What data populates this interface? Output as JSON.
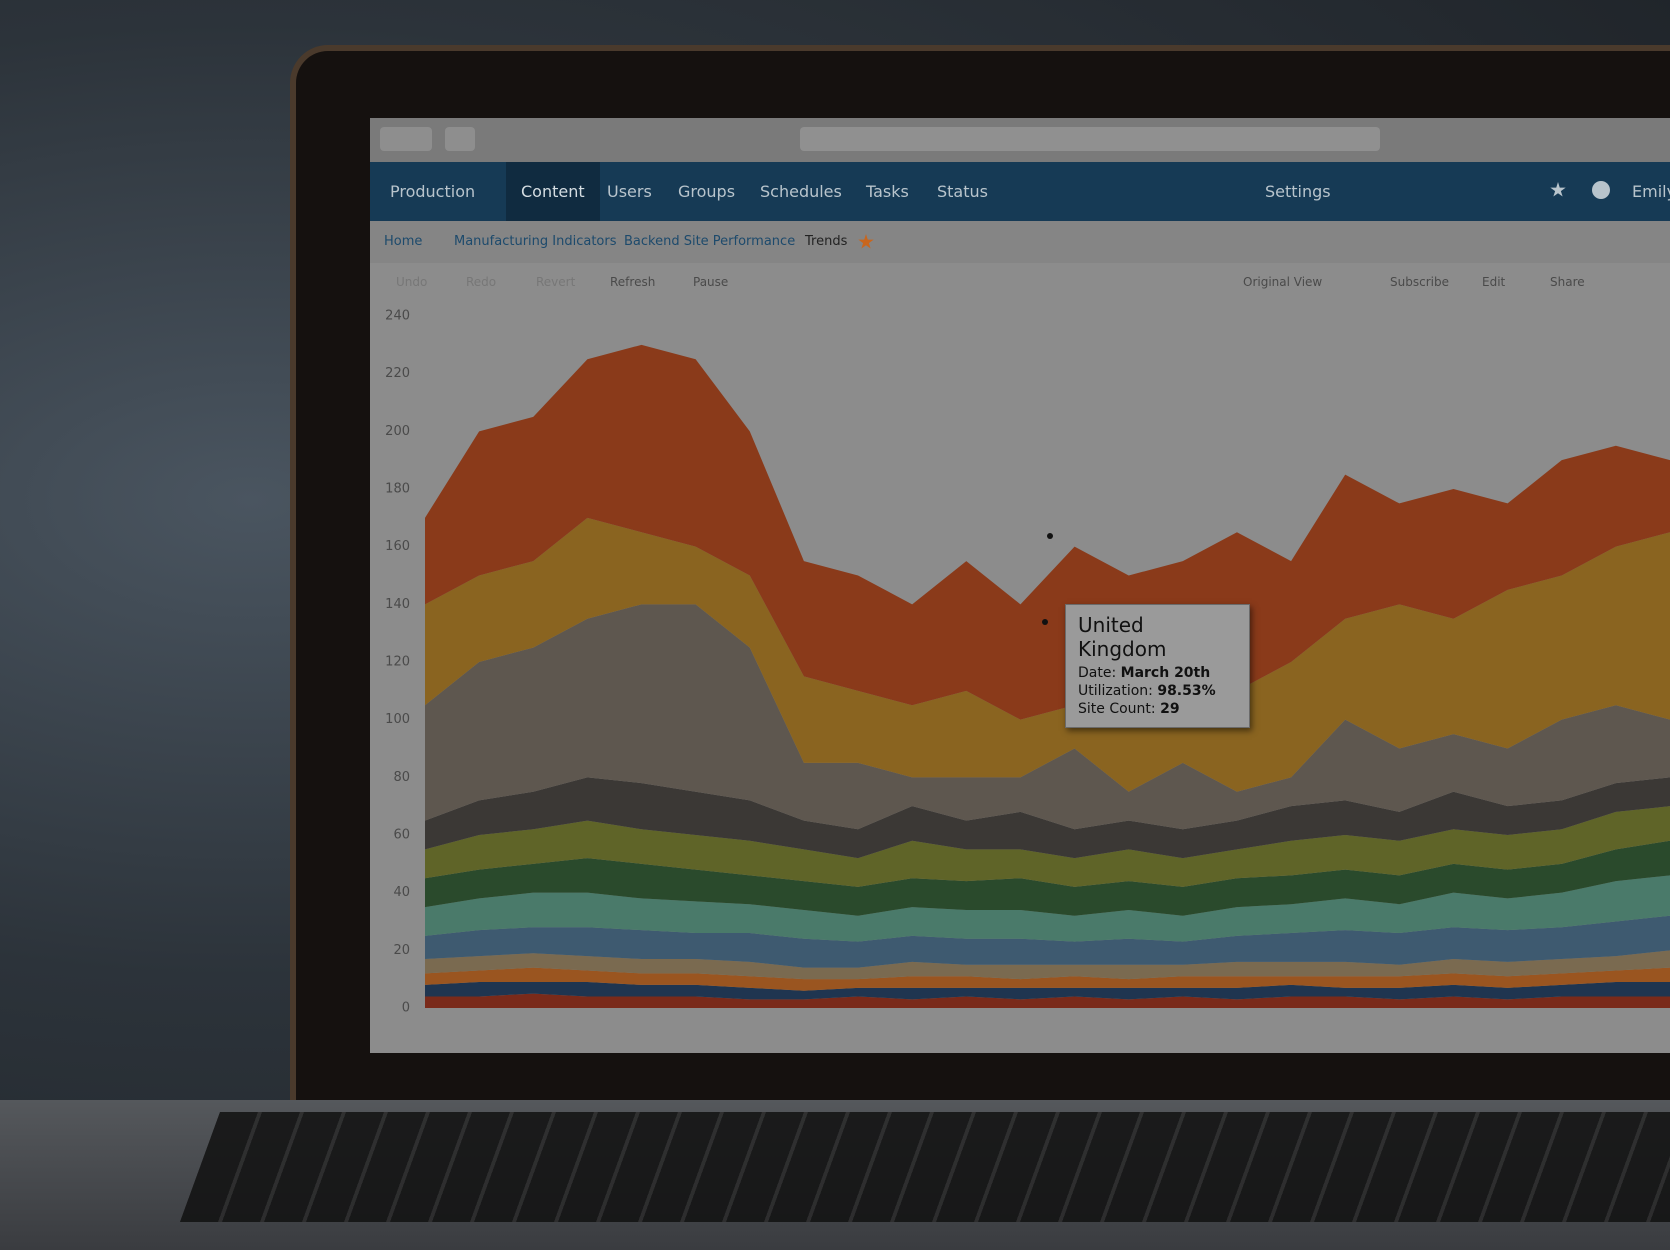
{
  "nav": {
    "site": "Production",
    "items": [
      "Content",
      "Users",
      "Groups",
      "Schedules",
      "Tasks",
      "Status"
    ],
    "settings": "Settings",
    "user": "Emily"
  },
  "breadcrumbs": [
    "Home",
    "Manufacturing Indicators",
    "Backend Site Performance",
    "Trends"
  ],
  "toolbar": {
    "left": [
      "Undo",
      "Redo",
      "Revert",
      "Refresh",
      "Pause"
    ],
    "right": [
      "Original View",
      "Subscribe",
      "Edit",
      "Share"
    ]
  },
  "chart_data": {
    "type": "area",
    "stacked": true,
    "ylim": [
      0,
      240
    ],
    "yticks": [
      0,
      20,
      40,
      60,
      80,
      100,
      120,
      140,
      160,
      180,
      200,
      220,
      240
    ],
    "series": [
      {
        "color": "#7a2a1a",
        "values": [
          4,
          4,
          5,
          4,
          4,
          4,
          3,
          3,
          4,
          3,
          4,
          3,
          4,
          3,
          4,
          3,
          4,
          4,
          3,
          4,
          3,
          4,
          4,
          4
        ]
      },
      {
        "color": "#1f3550",
        "values": [
          4,
          5,
          4,
          5,
          4,
          4,
          4,
          3,
          3,
          4,
          3,
          4,
          3,
          4,
          3,
          4,
          4,
          3,
          4,
          4,
          4,
          4,
          5,
          5
        ]
      },
      {
        "color": "#9a5520",
        "values": [
          4,
          4,
          5,
          4,
          4,
          4,
          4,
          4,
          3,
          4,
          4,
          3,
          4,
          3,
          4,
          4,
          3,
          4,
          4,
          4,
          4,
          4,
          4,
          5
        ]
      },
      {
        "color": "#7a6a50",
        "values": [
          5,
          5,
          5,
          5,
          5,
          5,
          5,
          4,
          4,
          5,
          4,
          5,
          4,
          5,
          4,
          5,
          5,
          5,
          4,
          5,
          5,
          5,
          5,
          6
        ]
      },
      {
        "color": "#3e5a70",
        "values": [
          8,
          9,
          9,
          10,
          10,
          9,
          10,
          10,
          9,
          9,
          9,
          9,
          8,
          9,
          8,
          9,
          10,
          11,
          11,
          11,
          11,
          11,
          12,
          12
        ]
      },
      {
        "color": "#4a7a6a",
        "values": [
          10,
          11,
          12,
          12,
          11,
          11,
          10,
          10,
          9,
          10,
          10,
          10,
          9,
          10,
          9,
          10,
          10,
          11,
          10,
          12,
          11,
          12,
          14,
          14
        ]
      },
      {
        "color": "#2a4a2c",
        "values": [
          10,
          10,
          10,
          12,
          12,
          11,
          10,
          10,
          10,
          10,
          10,
          11,
          10,
          10,
          10,
          10,
          10,
          10,
          10,
          10,
          10,
          10,
          11,
          12
        ]
      },
      {
        "color": "#5f6428",
        "values": [
          10,
          12,
          12,
          13,
          12,
          12,
          12,
          11,
          10,
          13,
          11,
          10,
          10,
          11,
          10,
          10,
          12,
          12,
          12,
          12,
          12,
          12,
          13,
          12
        ]
      },
      {
        "color": "#3b3835",
        "values": [
          10,
          12,
          13,
          15,
          16,
          15,
          14,
          10,
          10,
          12,
          10,
          13,
          10,
          10,
          10,
          10,
          12,
          12,
          10,
          13,
          10,
          10,
          10,
          10
        ]
      },
      {
        "color": "#5e574f",
        "values": [
          40,
          48,
          50,
          55,
          62,
          65,
          53,
          20,
          23,
          10,
          15,
          12,
          28,
          10,
          23,
          10,
          10,
          28,
          22,
          20,
          20,
          28,
          27,
          20
        ]
      },
      {
        "color": "#8a6420",
        "values": [
          35,
          30,
          30,
          35,
          25,
          20,
          25,
          30,
          25,
          25,
          30,
          20,
          15,
          25,
          20,
          35,
          40,
          35,
          50,
          40,
          55,
          50,
          55,
          65
        ]
      },
      {
        "color": "#8a3a1a",
        "values": [
          30,
          50,
          50,
          55,
          65,
          65,
          50,
          40,
          40,
          35,
          45,
          40,
          55,
          50,
          50,
          55,
          35,
          50,
          35,
          45,
          30,
          40,
          35,
          25
        ]
      }
    ]
  },
  "tooltip": {
    "title": "United Kingdom",
    "lines": [
      {
        "label": "Date:",
        "value": "March 20th"
      },
      {
        "label": "Utilization:",
        "value": "98.53%"
      },
      {
        "label": "Site Count:",
        "value": "29"
      }
    ]
  }
}
